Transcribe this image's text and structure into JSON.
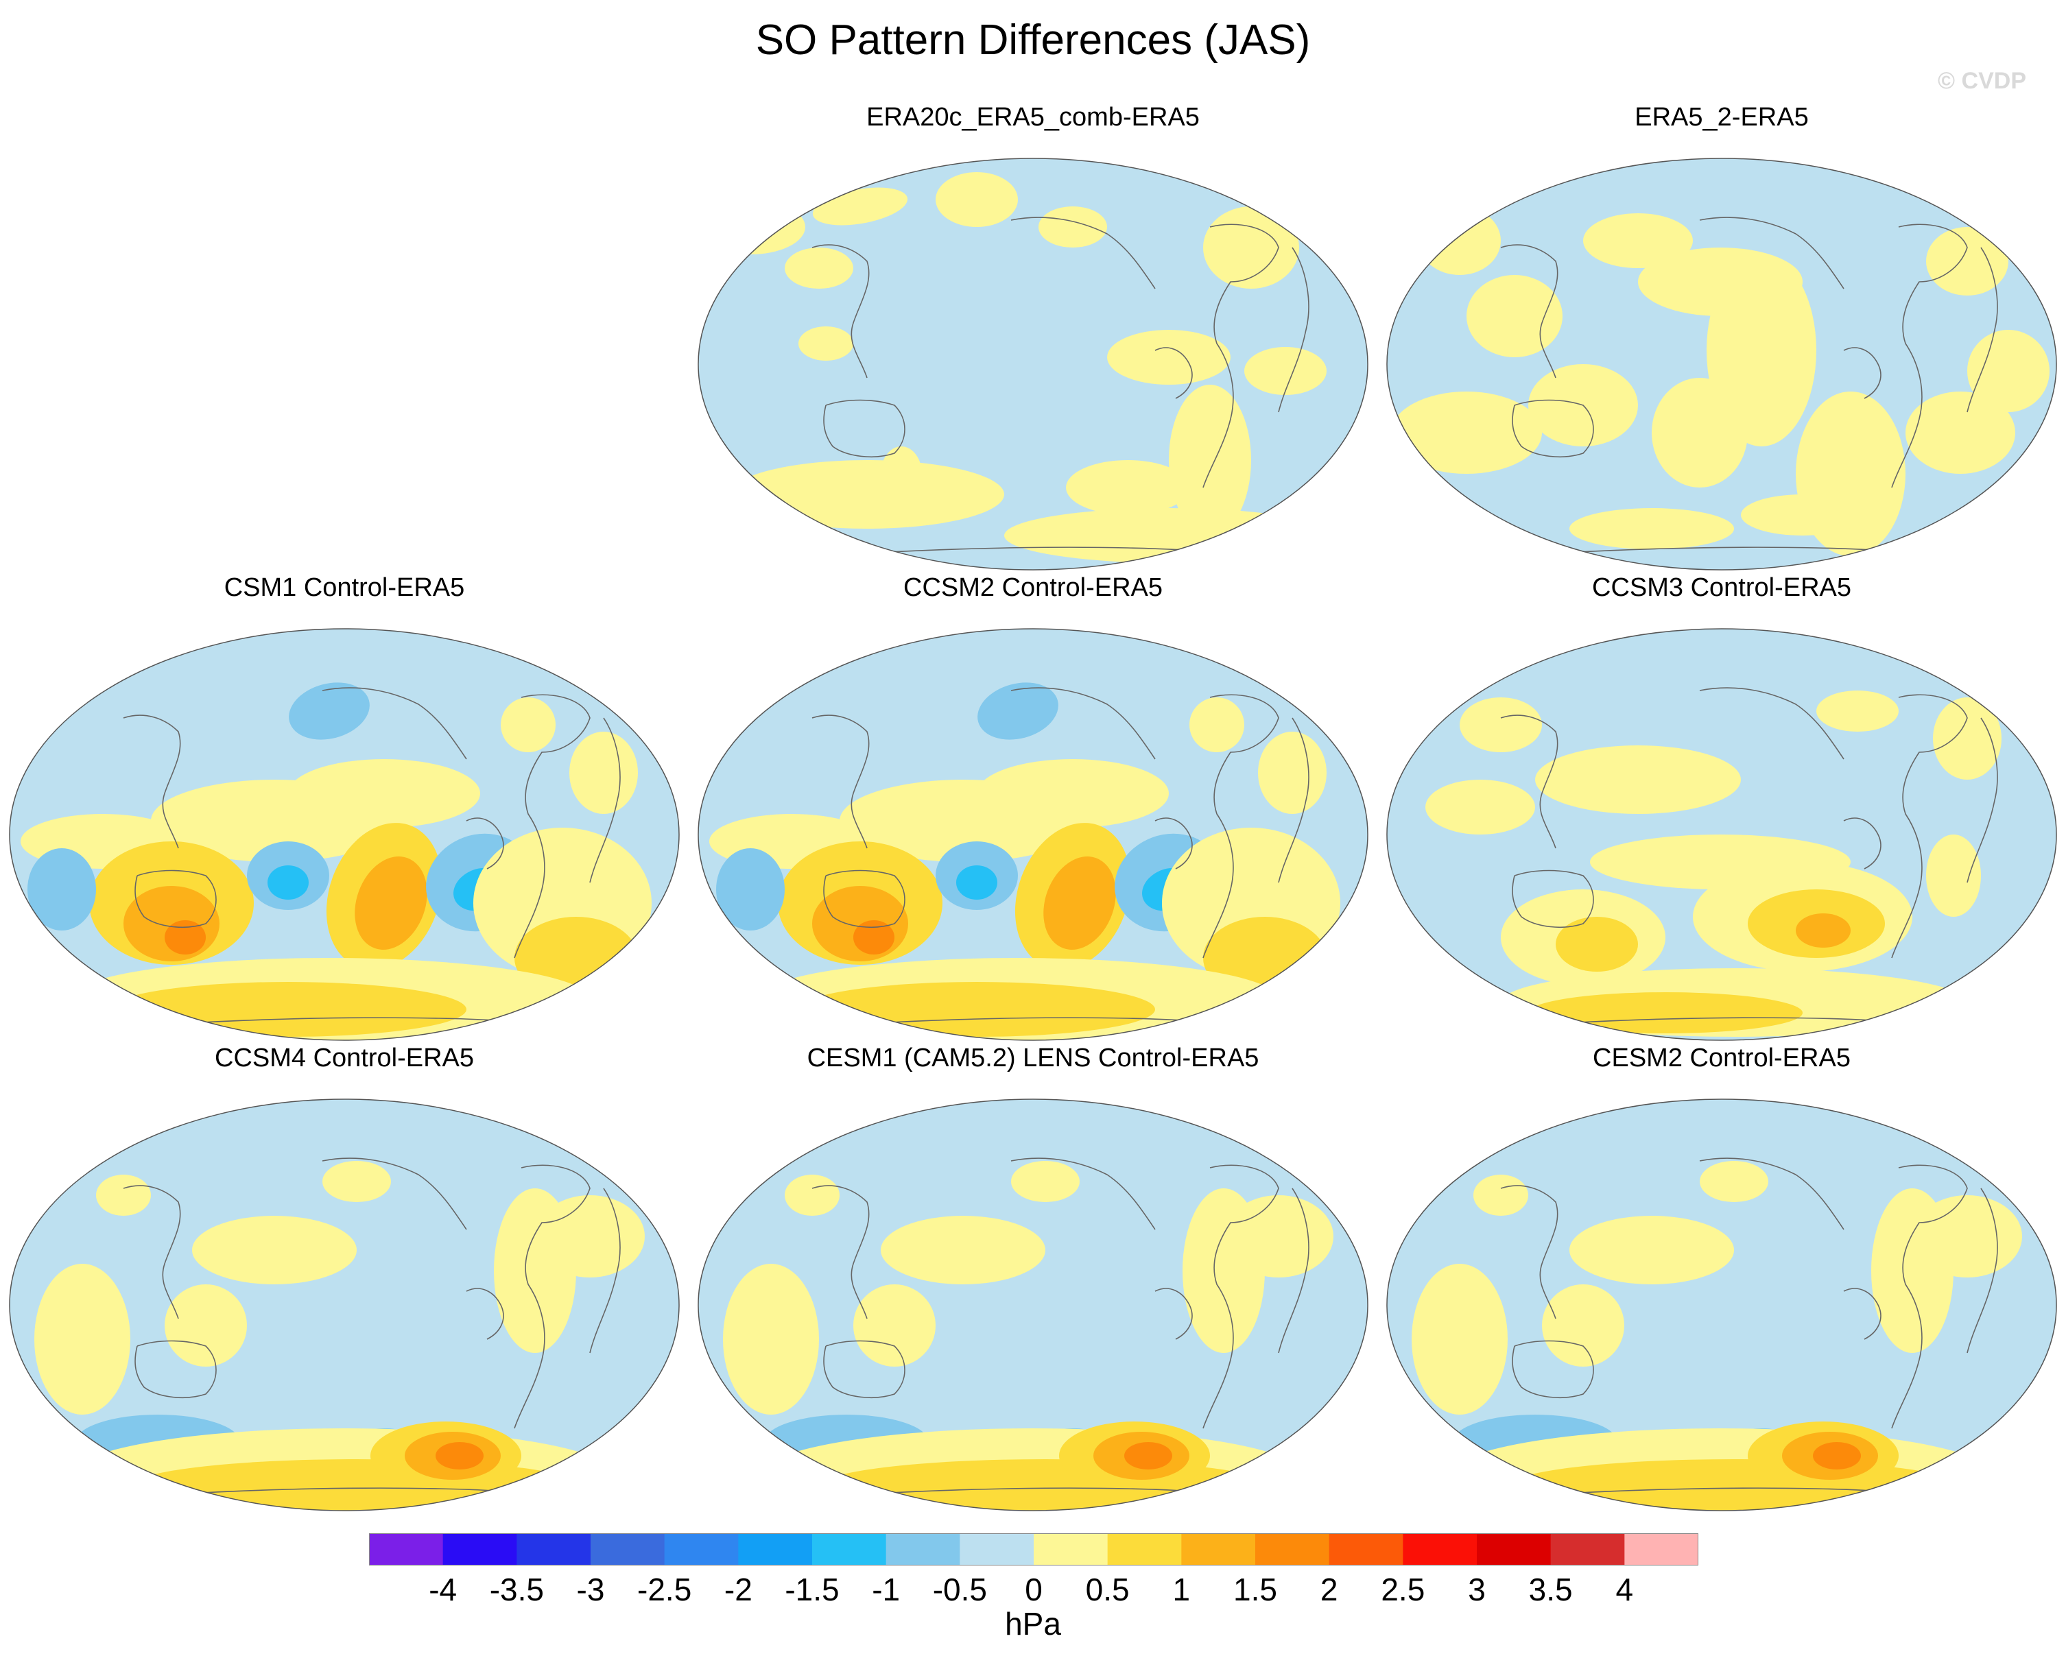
{
  "figure": {
    "title": "SO Pattern Differences (JAS)",
    "watermark": "© CVDP"
  },
  "panels": [
    {
      "title": "ERA20c_ERA5_comb-ERA5",
      "pattern": "weak"
    },
    {
      "title": "ERA5_2-ERA5",
      "pattern": "weak2"
    },
    {
      "title": "CSM1 Control-ERA5",
      "pattern": "strong"
    },
    {
      "title": "CCSM2 Control-ERA5",
      "pattern": "strong"
    },
    {
      "title": "CCSM3 Control-ERA5",
      "pattern": "moderate"
    },
    {
      "title": "CCSM4 Control-ERA5",
      "pattern": "south"
    },
    {
      "title": "CESM1 (CAM5.2) LENS Control-ERA5",
      "pattern": "south"
    },
    {
      "title": "CESM2 Control-ERA5",
      "pattern": "south"
    }
  ],
  "colors": {
    "ocean_background": "#bde0f0",
    "coastline": "#666666",
    "border": "#555555"
  },
  "colorbar": {
    "unit": "hPa",
    "tick_labels": [
      "-4",
      "-3.5",
      "-3",
      "-2.5",
      "-2",
      "-1.5",
      "-1",
      "-0.5",
      "0",
      "0.5",
      "1",
      "1.5",
      "2",
      "2.5",
      "3",
      "3.5",
      "4"
    ],
    "colors": [
      "#7b1fe8",
      "#2a0cf5",
      "#2435e8",
      "#3a6bdd",
      "#2f86f0",
      "#129ff5",
      "#25c0f5",
      "#82c8ec",
      "#bde0f0",
      "#fdf796",
      "#fcdc3a",
      "#fcb119",
      "#fc8a0a",
      "#fc5a08",
      "#fb1006",
      "#dc0000",
      "#d62d2d",
      "#ffb3b3"
    ]
  }
}
